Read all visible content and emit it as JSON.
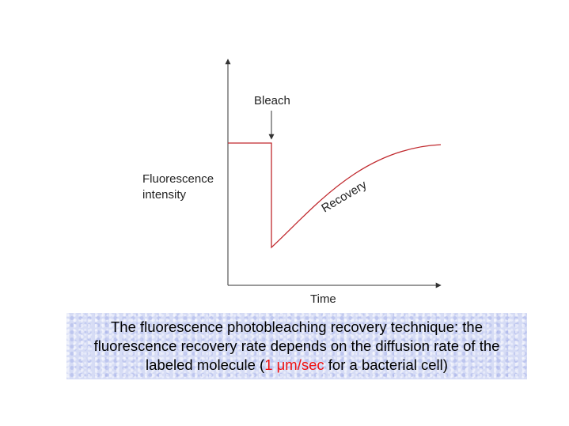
{
  "diagram": {
    "labels": {
      "bleach": "Bleach",
      "recovery": "Recovery",
      "y_axis_line1": "Fluorescence",
      "y_axis_line2": "intensity",
      "x_axis": "Time"
    },
    "colors": {
      "axis": "#333333",
      "curve": "#c0282d",
      "caption_highlight": "#ee1111",
      "caption_background": "#d6dcf5"
    }
  },
  "caption": {
    "part1": "The fluorescence photobleaching recovery technique:  the fluorescence recovery rate depends on the diffusion rate of the labeled molecule (",
    "highlight": "1 μm/sec",
    "part2": " for a bacterial cell)"
  }
}
